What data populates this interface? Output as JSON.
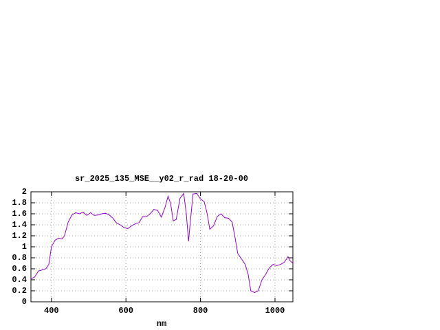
{
  "chart_data": {
    "type": "line",
    "title": "sr_2025_135_MSE__y02_r_rad 18-20-00",
    "xlabel": "nm",
    "x": [
      345,
      355,
      365,
      375,
      385,
      393,
      400,
      410,
      420,
      428,
      435,
      445,
      455,
      465,
      475,
      485,
      495,
      505,
      515,
      525,
      535,
      545,
      555,
      565,
      575,
      585,
      595,
      605,
      615,
      625,
      635,
      645,
      655,
      665,
      675,
      685,
      695,
      705,
      713,
      720,
      727,
      735,
      745,
      755,
      762,
      768,
      772,
      780,
      790,
      800,
      810,
      818,
      825,
      835,
      845,
      855,
      865,
      875,
      885,
      892,
      900,
      910,
      920,
      928,
      935,
      945,
      955,
      965,
      975,
      985,
      995,
      1005,
      1015,
      1025,
      1035,
      1040,
      1048
    ],
    "series": [
      {
        "color": "#9400d3",
        "values": [
          0.42,
          0.45,
          0.56,
          0.58,
          0.6,
          0.68,
          1.0,
          1.12,
          1.16,
          1.14,
          1.2,
          1.45,
          1.58,
          1.62,
          1.6,
          1.63,
          1.57,
          1.62,
          1.57,
          1.58,
          1.6,
          1.61,
          1.58,
          1.52,
          1.43,
          1.4,
          1.35,
          1.33,
          1.38,
          1.42,
          1.44,
          1.55,
          1.55,
          1.6,
          1.68,
          1.66,
          1.54,
          1.72,
          1.92,
          1.78,
          1.47,
          1.5,
          1.88,
          1.97,
          1.6,
          1.1,
          1.4,
          1.96,
          1.97,
          1.87,
          1.82,
          1.6,
          1.32,
          1.38,
          1.55,
          1.6,
          1.53,
          1.52,
          1.45,
          1.2,
          0.88,
          0.78,
          0.68,
          0.5,
          0.2,
          0.17,
          0.2,
          0.4,
          0.5,
          0.62,
          0.68,
          0.66,
          0.68,
          0.72,
          0.82,
          0.75,
          0.7
        ]
      }
    ],
    "xlim": [
      345,
      1048
    ],
    "ylim": [
      0,
      2
    ],
    "xticks": [
      400,
      600,
      800,
      1000
    ],
    "yticks": [
      0,
      0.2,
      0.4,
      0.6,
      0.8,
      1,
      1.2,
      1.4,
      1.6,
      1.8,
      2
    ],
    "grid": true
  }
}
